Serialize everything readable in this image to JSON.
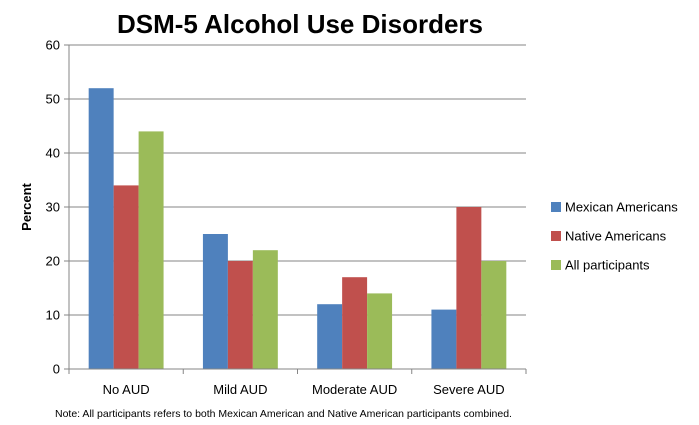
{
  "chart_data": {
    "type": "bar",
    "title": "DSM-5 Alcohol Use Disorders",
    "xlabel": "",
    "ylabel": "Percent",
    "categories": [
      "No AUD",
      "Mild AUD",
      "Moderate AUD",
      "Severe AUD"
    ],
    "series": [
      {
        "name": "Mexican Americans",
        "values": [
          52,
          25,
          12,
          11
        ],
        "color": "#4f81bd"
      },
      {
        "name": "Native Americans",
        "values": [
          34,
          20,
          17,
          30
        ],
        "color": "#c0504d"
      },
      {
        "name": "All participants",
        "values": [
          44,
          22,
          14,
          20
        ],
        "color": "#9bbb59"
      }
    ],
    "ylim": [
      0,
      60
    ],
    "yticks": [
      0,
      10,
      20,
      30,
      40,
      50,
      60
    ],
    "grid": true,
    "legend_position": "right",
    "note": "Note: All participants refers to both Mexican American and Native American participants combined."
  }
}
